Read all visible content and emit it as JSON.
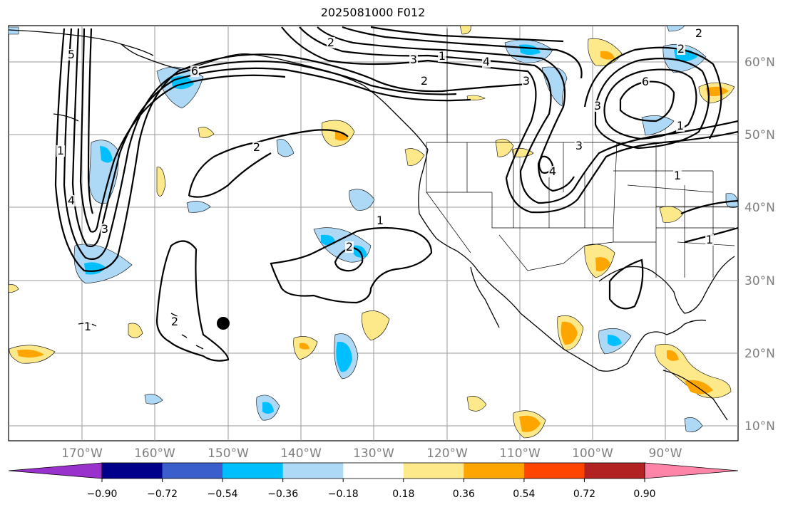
{
  "title": "2025081000 F012",
  "map": {
    "type": "weather-forecast-map",
    "region": "North Pacific / North America",
    "longitude_labels": [
      "170°W",
      "160°W",
      "150°W",
      "140°W",
      "130°W",
      "120°W",
      "110°W",
      "100°W",
      "90°W"
    ],
    "latitude_labels": [
      "60°N",
      "50°N",
      "40°N",
      "30°N",
      "20°N",
      "10°N"
    ],
    "contour_labels": [
      "1",
      "2",
      "3",
      "4",
      "5",
      "6",
      "1",
      "2",
      "3",
      "4",
      "2",
      "1",
      "1",
      "2",
      "3",
      "1",
      "2",
      "3",
      "4",
      "6",
      "3",
      "2",
      "1",
      "1",
      "2"
    ],
    "marker": "black-dot"
  },
  "colorbar": {
    "tick_labels": [
      "−0.90",
      "−0.72",
      "−0.54",
      "−0.36",
      "−0.18",
      "0.18",
      "0.36",
      "0.54",
      "0.72",
      "0.90"
    ],
    "colors": [
      "#9932cc",
      "#00008b",
      "#3a5fcd",
      "#00bfff",
      "#add8f6",
      "#ffffff",
      "#fde88a",
      "#ffa500",
      "#ff4500",
      "#b22222",
      "#ff85a8"
    ],
    "extend": "both"
  }
}
